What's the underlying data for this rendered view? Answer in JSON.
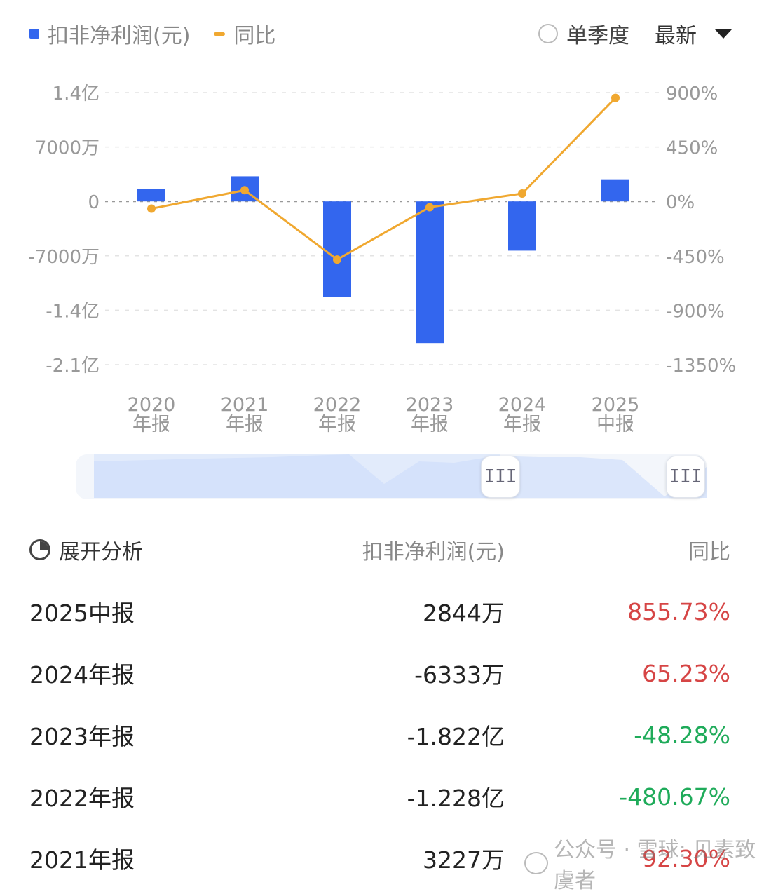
{
  "legend": {
    "bar_label": "扣非净利润(元)",
    "line_label": "同比",
    "bar_color": "#3366ee",
    "line_color": "#f0a830"
  },
  "controls": {
    "radio_label": "单季度",
    "select_value": "最新"
  },
  "chart_data": {
    "type": "bar",
    "categories": [
      [
        "2020",
        "年报"
      ],
      [
        "2021",
        "年报"
      ],
      [
        "2022",
        "年报"
      ],
      [
        "2023",
        "年报"
      ],
      [
        "2024",
        "年报"
      ],
      [
        "2025",
        "中报"
      ]
    ],
    "series": [
      {
        "name": "扣非净利润(元)",
        "type": "bar",
        "axis": "left",
        "unit": "万",
        "values": [
          1600,
          3227,
          -12280,
          -18220,
          -6333,
          2844
        ]
      },
      {
        "name": "同比",
        "type": "line",
        "axis": "right",
        "unit": "%",
        "values": [
          -60,
          92.3,
          -480.67,
          -48.28,
          65.23,
          855.73
        ]
      }
    ],
    "left_axis": {
      "ticks": [
        14000,
        7000,
        0,
        -7000,
        -14000,
        -21000
      ],
      "tick_labels": [
        "1.4亿",
        "7000万",
        "0",
        "-7000万",
        "-1.4亿",
        "-2.1亿"
      ],
      "ylim": [
        -21000,
        14000
      ]
    },
    "right_axis": {
      "ticks": [
        900,
        450,
        0,
        -450,
        -900,
        -1350
      ],
      "tick_labels": [
        "900%",
        "450%",
        "0%",
        "-450%",
        "-900%",
        "-1350%"
      ],
      "ylim": [
        -1350,
        900
      ]
    },
    "grid": true,
    "legend_position": "top-left"
  },
  "slider": {
    "start_handle_glyph": "III",
    "end_handle_glyph": "III"
  },
  "table": {
    "expand_label": "展开分析",
    "col_value": "扣非净利润(元)",
    "col_yoy": "同比",
    "rows": [
      {
        "period": "2025中报",
        "value": "2844万",
        "yoy": "855.73%",
        "trend": "pos"
      },
      {
        "period": "2024年报",
        "value": "-6333万",
        "yoy": "65.23%",
        "trend": "pos"
      },
      {
        "period": "2023年报",
        "value": "-1.822亿",
        "yoy": "-48.28%",
        "trend": "neg"
      },
      {
        "period": "2022年报",
        "value": "-1.228亿",
        "yoy": "-480.67%",
        "trend": "neg"
      },
      {
        "period": "2021年报",
        "value": "3227万",
        "yoy": "92.30%",
        "trend": "pos"
      }
    ]
  },
  "watermark": {
    "text": "公众号 · 雪球: 见素致虞者"
  }
}
